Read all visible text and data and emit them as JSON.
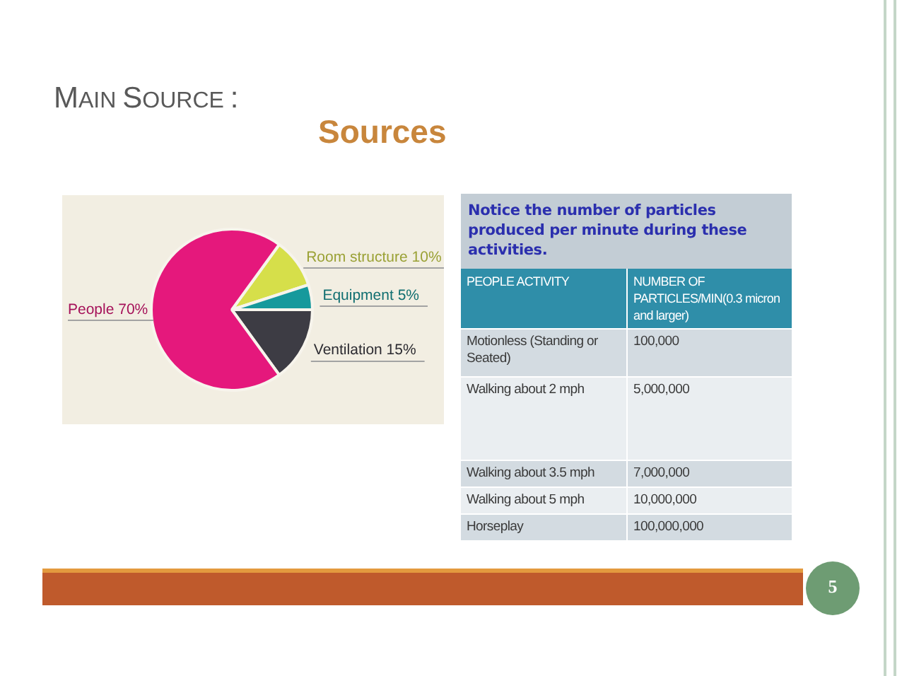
{
  "chart_data": [
    {
      "type": "pie",
      "title": "MAIN SOURCE :",
      "subtitle": "Sources",
      "categories": [
        "Room structure",
        "Equipment",
        "Ventilation",
        "People"
      ],
      "values": [
        10,
        5,
        15,
        70
      ],
      "colors": [
        "#d6df4a",
        "#16999c",
        "#3d3c44",
        "#e5187c"
      ],
      "value_labels": [
        "10%",
        "5%",
        "15%",
        "70%"
      ],
      "annotations": [
        "5"
      ]
    },
    {
      "type": "other",
      "title": "Notice the number of particles produced per minute during these activities.",
      "xlabel": "PEOPLE ACTIVITY",
      "ylabel": "NUMBER OF PARTICLES/MIN(0.3 micron and larger)",
      "categories": [
        "Motionless (Standing or Seated)",
        "Walking about 2 mph",
        "Walking about 3.5 mph",
        "Walking about 5 mph",
        "Horseplay"
      ],
      "values": [
        100000,
        5000000,
        7000000,
        10000000,
        100000000
      ],
      "value_labels": [
        "100,000",
        "5,000,000",
        "7,000,000",
        "10,000,000",
        "100,000,000"
      ]
    }
  ]
}
